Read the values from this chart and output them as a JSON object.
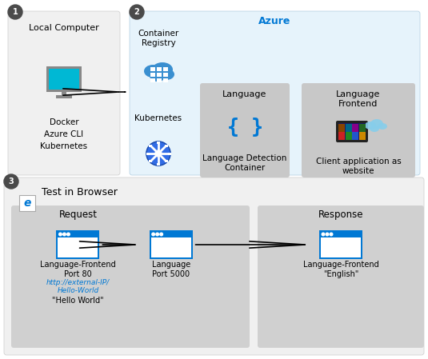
{
  "bg_color": "#ffffff",
  "light_gray": "#f0f0f0",
  "mid_gray": "#d0d0d0",
  "dark_gray": "#808080",
  "azure_blue_bg": "#e6f3fb",
  "azure_blue_text": "#0078d4",
  "box_gray": "#c8c8c8",
  "text_color": "#000000",
  "link_color": "#0078d4",
  "circle_bg": "#4a4a4a",
  "section1_label": "1",
  "section2_label": "2",
  "section3_label": "3",
  "local_title": "Local Computer",
  "local_sub": "Docker\nAzure CLI\nKubernetes",
  "azure_title": "Azure",
  "container_reg_label": "Container\nRegistry",
  "kubernetes_label": "Kubernetes",
  "language_label": "Language",
  "lang_detect_label": "Language Detection\nContainer",
  "lang_frontend_label": "Language\nFrontend",
  "client_app_label": "Client application as\nwebsite",
  "section3_title": "Test in Browser",
  "request_label": "Request",
  "response_label": "Response",
  "lang_front_port80": "Language-Frontend\nPort 80",
  "lang_port5000": "Language\nPort 5000",
  "lang_front_response": "Language-Frontend\n\"English\"",
  "url_text": "http://external-IP/\nHello-World",
  "hello_world_text": "\"Hello World\""
}
